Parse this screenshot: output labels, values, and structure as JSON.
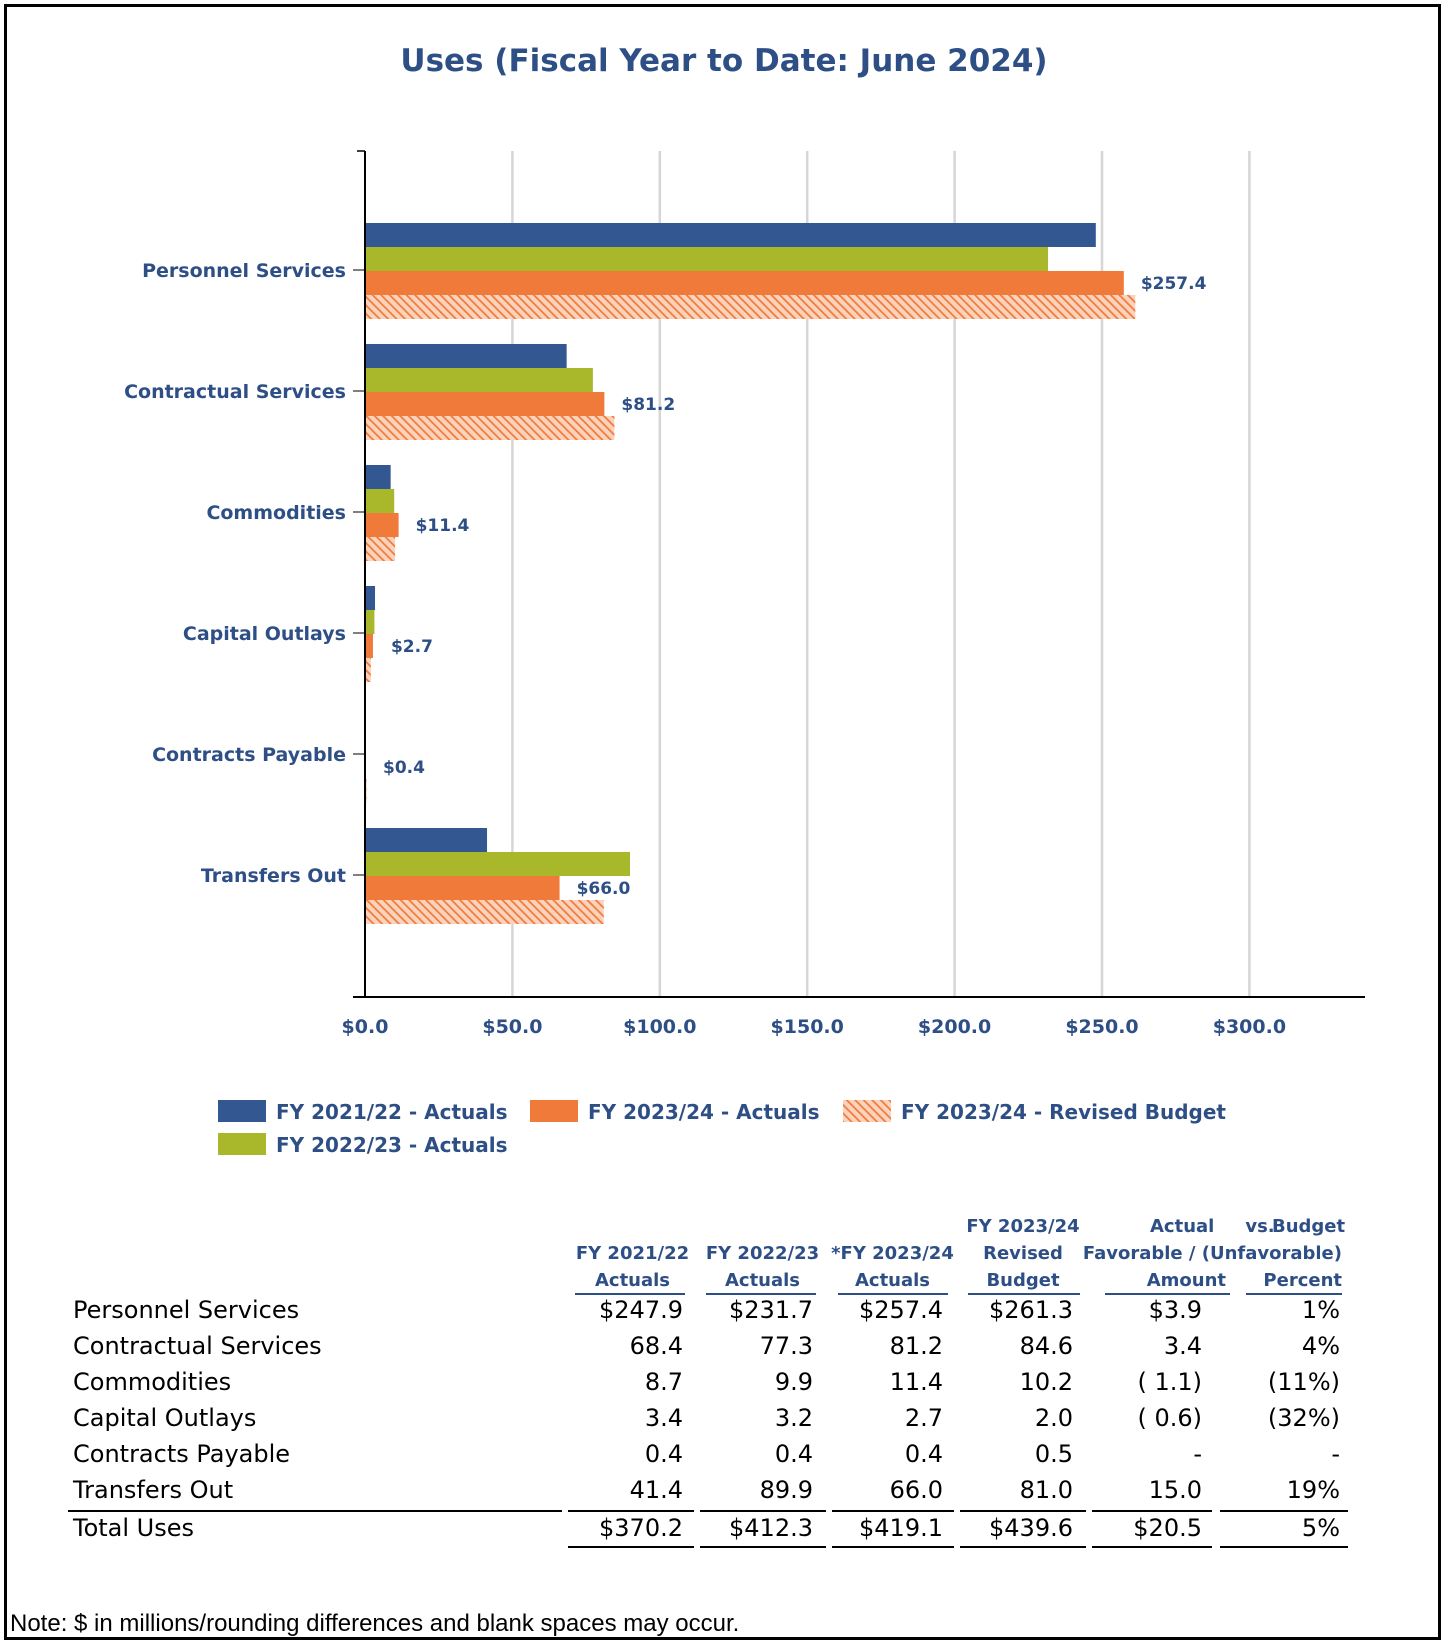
{
  "chart_data": {
    "type": "bar",
    "orientation": "horizontal",
    "title": "Uses (Fiscal Year to Date: June 2024)",
    "categories": [
      "Personnel Services",
      "Contractual Services",
      "Commodities",
      "Capital Outlays",
      "Contracts Payable",
      "Transfers Out"
    ],
    "series": [
      {
        "name": "FY 2021/22 - Actuals",
        "values": [
          247.9,
          68.4,
          8.7,
          3.4,
          0.4,
          41.4
        ],
        "color": "#335891",
        "pattern": "solid"
      },
      {
        "name": "FY 2022/23 - Actuals",
        "values": [
          231.7,
          77.3,
          9.9,
          3.2,
          0.4,
          89.9
        ],
        "color": "#A8B82A",
        "pattern": "solid"
      },
      {
        "name": "FY 2023/24 - Actuals",
        "values": [
          257.4,
          81.2,
          11.4,
          2.7,
          0.4,
          66.0
        ],
        "color": "#F07A3A",
        "pattern": "solid"
      },
      {
        "name": "FY 2023/24 - Revised Budget",
        "values": [
          261.3,
          84.6,
          10.2,
          2.0,
          0.5,
          81.0
        ],
        "color": "#F07A3A",
        "pattern": "hatched"
      }
    ],
    "data_labels": [
      "$257.4",
      "$81.2",
      "$11.4",
      "$2.7",
      "$0.4",
      "$66.0"
    ],
    "xlim": [
      0,
      340
    ],
    "x_ticks": [
      0,
      50,
      100,
      150,
      200,
      250,
      300
    ],
    "x_tick_labels": [
      "$0.0",
      "$50.0",
      "$100.0",
      "$150.0",
      "$200.0",
      "$250.0",
      "$300.0"
    ],
    "grid": true,
    "legend_position": "bottom"
  },
  "legend": {
    "items": [
      {
        "label": "FY 2021/22 - Actuals",
        "color": "#335891",
        "pattern": "solid"
      },
      {
        "label": "FY 2023/24 - Actuals",
        "color": "#F07A3A",
        "pattern": "solid"
      },
      {
        "label": "FY 2023/24 - Revised Budget",
        "color": "#F07A3A",
        "pattern": "hatched"
      },
      {
        "label": "FY 2022/23 - Actuals",
        "color": "#A8B82A",
        "pattern": "solid"
      }
    ]
  },
  "table": {
    "headers": {
      "c1": [
        "FY 2021/22",
        "Actuals"
      ],
      "c2": [
        "FY 2022/23",
        "Actuals"
      ],
      "c3": [
        "*FY 2023/24",
        "Actuals"
      ],
      "c4": [
        "FY 2023/24",
        "Revised",
        "Budget"
      ],
      "variance_title_left": "Actual",
      "variance_title_mid": "vs.",
      "variance_title_right": "Budget",
      "variance_sub": "Favorable / (Unfavorable)",
      "c5": "Amount",
      "c6": "Percent"
    },
    "rows": [
      {
        "label": "Personnel Services",
        "c1": "$247.9",
        "c2": "$231.7",
        "c3": "$257.4",
        "c4": "$261.3",
        "c5": "$3.9",
        "c6": "1%"
      },
      {
        "label": "Contractual Services",
        "c1": "68.4",
        "c2": "77.3",
        "c3": "81.2",
        "c4": "84.6",
        "c5": "3.4",
        "c6": "4%"
      },
      {
        "label": "Commodities",
        "c1": "8.7",
        "c2": "9.9",
        "c3": "11.4",
        "c4": "10.2",
        "c5": "( 1.1)",
        "c6": "(11%)"
      },
      {
        "label": "Capital Outlays",
        "c1": "3.4",
        "c2": "3.2",
        "c3": "2.7",
        "c4": "2.0",
        "c5": "( 0.6)",
        "c6": "(32%)"
      },
      {
        "label": "Contracts Payable",
        "c1": "0.4",
        "c2": "0.4",
        "c3": "0.4",
        "c4": "0.5",
        "c5": "-",
        "c6": "-"
      },
      {
        "label": "Transfers Out",
        "c1": "41.4",
        "c2": "89.9",
        "c3": "66.0",
        "c4": "81.0",
        "c5": "15.0",
        "c6": "19%"
      }
    ],
    "total": {
      "label": "Total Uses",
      "c1": "$370.2",
      "c2": "$412.3",
      "c3": "$419.1",
      "c4": "$439.6",
      "c5": "$20.5",
      "c6": "5%"
    }
  },
  "note": "Note: $ in millions/rounding differences and blank spaces may occur."
}
